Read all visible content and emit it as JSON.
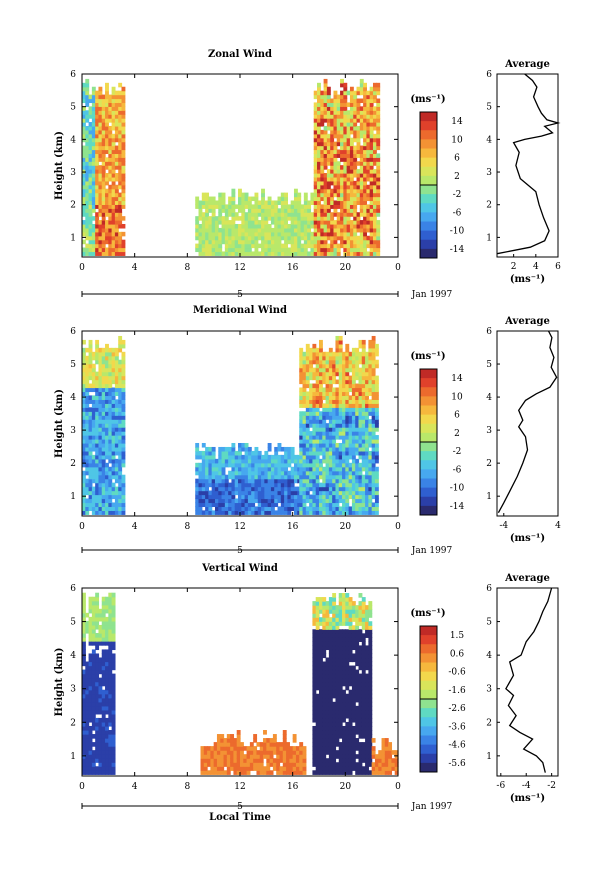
{
  "chart_data": [
    {
      "type": "heatmap",
      "title": "Zonal Wind",
      "ylabel": "Height (km)",
      "ylim": [
        0.4,
        6
      ],
      "yticks": [
        "1",
        "2",
        "3",
        "4",
        "5",
        "6"
      ],
      "xticks": [
        "0",
        "4",
        "8",
        "12",
        "16",
        "20",
        "0"
      ],
      "day_label": "5",
      "date_label": "Jan 1997",
      "colorbar": {
        "unit": "(ms⁻¹)",
        "ticks": [
          "14",
          "10",
          "6",
          "2",
          "-2",
          "-6",
          "-10",
          "-14"
        ],
        "range": [
          -16,
          16
        ]
      },
      "data_segments": [
        {
          "hours": [
            0,
            3.2
          ],
          "height_top": 5.8
        },
        {
          "hours": [
            8.6,
            17.6
          ],
          "height_top": 2.4
        },
        {
          "hours": [
            17.6,
            22.5
          ],
          "height_top": 5.8
        }
      ],
      "average": {
        "title": "Average",
        "xlabel": "(ms⁻¹)",
        "xticks": [
          "2",
          "4",
          "6"
        ],
        "xlim": [
          0.5,
          6
        ],
        "yticks": [
          "1",
          "2",
          "3",
          "4",
          "5",
          "6"
        ],
        "profile": [
          [
            0.5,
            0.5
          ],
          [
            3.5,
            0.7
          ],
          [
            4.8,
            0.9
          ],
          [
            5.2,
            1.2
          ],
          [
            4.7,
            1.6
          ],
          [
            4.3,
            2.0
          ],
          [
            4.0,
            2.4
          ],
          [
            2.6,
            2.8
          ],
          [
            2.2,
            3.2
          ],
          [
            2.5,
            3.6
          ],
          [
            2.0,
            3.9
          ],
          [
            3.0,
            4.0
          ],
          [
            4.5,
            4.1
          ],
          [
            5.5,
            4.2
          ],
          [
            4.8,
            4.4
          ],
          [
            6.0,
            4.5
          ],
          [
            5.0,
            4.6
          ],
          [
            4.5,
            4.8
          ],
          [
            4.2,
            5.0
          ],
          [
            3.8,
            5.3
          ],
          [
            4.1,
            5.6
          ],
          [
            3.7,
            5.8
          ],
          [
            3.0,
            6.0
          ]
        ]
      }
    },
    {
      "type": "heatmap",
      "title": "Meridional Wind",
      "ylabel": "Height (km)",
      "ylim": [
        0.4,
        6
      ],
      "yticks": [
        "1",
        "2",
        "3",
        "4",
        "5",
        "6"
      ],
      "xticks": [
        "0",
        "4",
        "8",
        "12",
        "16",
        "20",
        "0"
      ],
      "day_label": "5",
      "date_label": "Jan 1997",
      "colorbar": {
        "unit": "(ms⁻¹)",
        "ticks": [
          "14",
          "10",
          "6",
          "2",
          "-2",
          "-6",
          "-10",
          "-14"
        ],
        "range": [
          -16,
          16
        ]
      },
      "data_segments": [
        {
          "hours": [
            0,
            3.2
          ],
          "height_top": 5.8
        },
        {
          "hours": [
            8.6,
            16.5
          ],
          "height_top": 2.6
        },
        {
          "hours": [
            16.5,
            22.5
          ],
          "height_top": 5.8
        }
      ],
      "average": {
        "title": "Average",
        "xlabel": "(ms⁻¹)",
        "xticks": [
          "-4",
          "4"
        ],
        "xlim": [
          -5,
          4
        ],
        "yticks": [
          "1",
          "2",
          "3",
          "4",
          "5",
          "6"
        ],
        "profile": [
          [
            -4.8,
            0.5
          ],
          [
            -4.0,
            0.8
          ],
          [
            -3.0,
            1.2
          ],
          [
            -2.0,
            1.6
          ],
          [
            -1.2,
            2.0
          ],
          [
            -0.5,
            2.4
          ],
          [
            -0.8,
            2.8
          ],
          [
            -1.8,
            3.1
          ],
          [
            -1.2,
            3.3
          ],
          [
            -1.8,
            3.6
          ],
          [
            -0.8,
            3.9
          ],
          [
            0.8,
            4.1
          ],
          [
            2.8,
            4.3
          ],
          [
            3.8,
            4.6
          ],
          [
            3.0,
            4.9
          ],
          [
            3.4,
            5.2
          ],
          [
            2.8,
            5.5
          ],
          [
            3.1,
            5.8
          ],
          [
            2.6,
            6.0
          ]
        ]
      }
    },
    {
      "type": "heatmap",
      "title": "Vertical Wind",
      "ylabel": "Height (km)",
      "ylim": [
        0.4,
        6
      ],
      "yticks": [
        "1",
        "2",
        "3",
        "4",
        "5",
        "6"
      ],
      "xticks": [
        "0",
        "4",
        "8",
        "12",
        "16",
        "20",
        "0"
      ],
      "xlabel": "Local Time",
      "day_label": "5",
      "date_label": "Jan 1997",
      "colorbar": {
        "unit": "(ms⁻¹)",
        "ticks": [
          "1.5",
          "0.6",
          "-0.6",
          "-1.6",
          "-2.6",
          "-3.6",
          "-4.6",
          "-5.6"
        ],
        "range": [
          -6,
          2
        ]
      },
      "data_segments": [
        {
          "hours": [
            0,
            2.5
          ],
          "height_top": 4.3
        },
        {
          "hours": [
            0,
            2.5
          ],
          "height_top": 5.8,
          "height_bottom": 4.3
        },
        {
          "hours": [
            9,
            17
          ],
          "height_top": 1.7
        },
        {
          "hours": [
            17.5,
            22
          ],
          "height_top": 5.9
        },
        {
          "hours": [
            22,
            23.8
          ],
          "height_top": 1.5
        }
      ],
      "average": {
        "title": "Average",
        "xlabel": "(ms⁻¹)",
        "xticks": [
          "-6",
          "-4",
          "-2"
        ],
        "xlim": [
          -6.3,
          -1.5
        ],
        "yticks": [
          "1",
          "2",
          "3",
          "4",
          "5",
          "6"
        ],
        "profile": [
          [
            -2.5,
            0.5
          ],
          [
            -2.7,
            0.8
          ],
          [
            -3.2,
            1.0
          ],
          [
            -4.2,
            1.2
          ],
          [
            -3.5,
            1.5
          ],
          [
            -4.5,
            1.7
          ],
          [
            -5.3,
            1.9
          ],
          [
            -4.8,
            2.2
          ],
          [
            -5.4,
            2.5
          ],
          [
            -5.0,
            2.8
          ],
          [
            -5.6,
            3.0
          ],
          [
            -5.0,
            3.4
          ],
          [
            -5.3,
            3.8
          ],
          [
            -4.4,
            4.0
          ],
          [
            -4.0,
            4.4
          ],
          [
            -3.4,
            4.7
          ],
          [
            -3.0,
            5.0
          ],
          [
            -2.7,
            5.3
          ],
          [
            -2.3,
            5.6
          ],
          [
            -2.0,
            6.0
          ]
        ]
      }
    }
  ]
}
